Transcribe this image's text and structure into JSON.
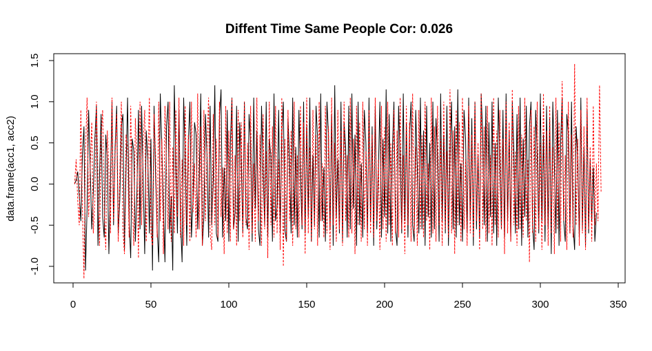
{
  "chart_data": {
    "type": "line",
    "title": "Diffent Time Same People Cor: 0.026",
    "xlabel": "",
    "ylabel": "data.frame(acc1, acc2)",
    "xlim": [
      0,
      340
    ],
    "ylim": [
      -1.15,
      1.46
    ],
    "x_ticks": [
      0,
      50,
      100,
      150,
      200,
      250,
      300,
      350
    ],
    "y_ticks": [
      -1.0,
      -0.5,
      0.0,
      0.5,
      1.0,
      1.5
    ],
    "x_tick_labels": [
      "0",
      "50",
      "100",
      "150",
      "200",
      "250",
      "300",
      "350"
    ],
    "y_tick_labels": [
      "-1.0",
      "-0.5",
      "0.0",
      "0.5",
      "1.0",
      "1.5"
    ],
    "grid": false,
    "colors": {
      "series_1": "#000000",
      "series_2": "#ff0000"
    },
    "series": [
      {
        "line_style": "solid",
        "color": "#000000",
        "x_start": 1,
        "x_step": 1,
        "values": [
          0.0,
          0.05,
          0.15,
          -0.15,
          -0.45,
          0.35,
          0.7,
          -1.05,
          -0.3,
          0.9,
          0.2,
          -0.55,
          -0.1,
          0.55,
          0.95,
          -0.75,
          0.1,
          0.85,
          -0.4,
          -0.65,
          0.6,
          0.3,
          -0.85,
          0.0,
          1.0,
          -0.5,
          0.45,
          0.95,
          -0.6,
          -0.2,
          0.7,
          0.85,
          -0.8,
          0.15,
          1.05,
          -0.45,
          -0.9,
          0.55,
          0.4,
          -0.7,
          -0.1,
          0.9,
          -0.55,
          0.95,
          0.05,
          -0.85,
          0.65,
          0.3,
          -0.6,
          0.55,
          -1.05,
          0.95,
          0.1,
          -0.55,
          -0.95,
          1.1,
          0.45,
          -0.3,
          -0.95,
          0.7,
          1.0,
          -0.6,
          -0.15,
          -1.05,
          1.2,
          0.2,
          -0.6,
          0.9,
          -0.45,
          -0.95,
          1.05,
          0.3,
          -0.75,
          0.5,
          1.0,
          -0.65,
          -0.2,
          0.75,
          0.6,
          -0.55,
          0.1,
          1.1,
          -0.75,
          -0.4,
          0.85,
          0.35,
          -0.65,
          0.95,
          -0.5,
          0.05,
          1.2,
          -0.6,
          -0.7,
          0.8,
          1.15,
          -0.65,
          0.2,
          -0.45,
          0.9,
          -0.7,
          0.5,
          1.05,
          -0.55,
          -0.35,
          0.95,
          -0.7,
          0.75,
          0.25,
          -0.6,
          1.0,
          -0.4,
          -0.55,
          0.85,
          0.5,
          -0.7,
          1.05,
          -0.3,
          0.65,
          -0.55,
          -0.75,
          0.95,
          0.15,
          -0.5,
          1.0,
          -0.65,
          0.55,
          0.35,
          -0.7,
          1.1,
          -0.45,
          -0.25,
          0.9,
          -0.6,
          0.6,
          1.0,
          -0.55,
          -0.7,
          0.8,
          0.3,
          -0.6,
          1.05,
          -0.5,
          0.45,
          -0.65,
          0.9,
          0.1,
          -0.55,
          1.0,
          -0.6,
          0.7,
          -0.4,
          1.05,
          -0.7,
          0.35,
          -0.5,
          0.95,
          0.55,
          -0.65,
          1.1,
          -0.45,
          0.2,
          -0.7,
          1.0,
          0.6,
          -0.55,
          0.85,
          -0.75,
          1.2,
          -0.4,
          0.3,
          -0.6,
          1.0,
          -0.7,
          0.75,
          0.45,
          -0.65,
          0.95,
          -0.55,
          1.1,
          -0.3,
          0.6,
          -0.75,
          1.0,
          -0.5,
          0.25,
          -0.65,
          0.9,
          0.5,
          -0.6,
          1.05,
          -0.45,
          0.7,
          -0.75,
          0.95,
          -0.55,
          0.15,
          1.0,
          -0.65,
          0.55,
          -0.4,
          1.15,
          -0.6,
          0.85,
          -0.7,
          0.4,
          1.0,
          -0.55,
          -0.75,
          0.95,
          0.3,
          -0.6,
          1.1,
          -0.45,
          0.75,
          -0.65,
          0.6,
          1.0,
          -0.5,
          -0.7,
          0.9,
          0.2,
          -0.6,
          1.05,
          -0.55,
          0.65,
          -0.75,
          0.95,
          -0.4,
          0.5,
          -0.65,
          1.0,
          -0.55,
          0.8,
          0.35,
          -0.7,
          1.1,
          -0.45,
          0.6,
          -0.6,
          0.95,
          -0.75,
          0.4,
          1.0,
          -0.55,
          0.7,
          -0.65,
          1.15,
          -0.5,
          0.25,
          -0.7,
          0.9,
          0.55,
          -0.6,
          1.05,
          -0.45,
          0.8,
          -0.75,
          1.0,
          -0.55,
          0.35,
          -0.65,
          1.1,
          0.6,
          -0.5,
          0.95,
          -0.7,
          0.75,
          -0.4,
          1.0,
          -0.6,
          0.5,
          -0.75,
          1.05,
          0.3,
          -0.55,
          0.9,
          -0.65,
          1.1,
          -0.45,
          0.65,
          -0.7,
          1.0,
          0.4,
          -0.6,
          0.85,
          -0.55,
          1.05,
          -0.75,
          0.55,
          -0.4,
          0.95,
          -0.65,
          0.7,
          1.0,
          -0.5,
          -0.8,
          0.9,
          0.35,
          -0.6,
          1.1,
          -0.45,
          0.6,
          -0.7,
          0.95,
          -0.55,
          0.8,
          -0.85,
          1.0,
          0.25,
          -0.6,
          0.9,
          -0.75,
          0.5,
          1.05,
          -0.45,
          -0.7,
          0.85,
          0.6,
          -0.6,
          1.0,
          -0.5,
          -0.8,
          0.7,
          0.3,
          -0.65,
          1.05,
          -0.55,
          0.45,
          -0.75,
          0.9,
          -0.6,
          0.3,
          -0.45,
          0.2,
          -0.7,
          -0.35
        ]
      },
      {
        "line_style": "dashed",
        "color": "#ff0000",
        "x_start": 1,
        "x_step": 1,
        "values": [
          0.0,
          0.3,
          -0.2,
          -0.5,
          0.9,
          -0.3,
          -1.15,
          0.4,
          1.05,
          -0.4,
          0.2,
          0.75,
          -0.6,
          -0.2,
          1.0,
          0.1,
          -0.75,
          0.55,
          0.9,
          -0.3,
          -0.8,
          0.65,
          0.2,
          -0.6,
          1.05,
          -0.45,
          0.35,
          0.85,
          -0.7,
          0.1,
          1.0,
          -0.55,
          -0.85,
          0.6,
          0.45,
          -0.65,
          0.95,
          -0.2,
          -0.75,
          0.8,
          0.3,
          -0.9,
          1.0,
          -0.5,
          0.5,
          0.9,
          -0.7,
          0.15,
          1.05,
          -0.6,
          -0.75,
          0.85,
          0.35,
          -0.65,
          1.0,
          -0.45,
          0.55,
          -0.85,
          0.95,
          0.2,
          -0.55,
          1.0,
          -0.7,
          0.45,
          -0.6,
          0.9,
          -0.4,
          1.05,
          -0.65,
          0.3,
          -0.75,
          0.95,
          -0.5,
          0.6,
          -0.7,
          1.0,
          -0.35,
          0.25,
          -0.65,
          1.1,
          -0.55,
          0.7,
          -0.75,
          0.9,
          -0.45,
          0.4,
          1.05,
          -0.6,
          -0.8,
          0.85,
          -0.5,
          0.55,
          -0.65,
          1.0,
          -0.4,
          0.2,
          -0.85,
          0.95,
          -0.6,
          0.65,
          -0.7,
          1.05,
          -0.55,
          0.35,
          -0.75,
          0.9,
          -0.45,
          0.75,
          -0.65,
          1.0,
          -0.5,
          0.5,
          -0.8,
          0.95,
          -0.6,
          0.25,
          -0.7,
          1.05,
          -0.45,
          0.6,
          -0.75,
          0.85,
          -0.55,
          0.4,
          -0.9,
          1.0,
          -0.5,
          0.7,
          -0.65,
          0.95,
          -0.6,
          0.3,
          -0.8,
          1.05,
          -1.0,
          0.55,
          -0.7,
          0.9,
          -0.45,
          0.65,
          -0.75,
          1.0,
          -0.55,
          0.35,
          -0.65,
          0.95,
          -0.5,
          0.75,
          -0.85,
          1.05,
          -0.6,
          0.45,
          -0.7,
          0.9,
          -0.55,
          0.6,
          -0.75,
          1.0,
          -0.45,
          0.25,
          -0.65,
          0.95,
          -0.6,
          0.7,
          -0.8,
          1.05,
          -0.5,
          0.5,
          -0.7,
          0.9,
          -0.55,
          0.65,
          -0.75,
          1.0,
          -0.45,
          0.35,
          -0.65,
          1.05,
          -0.6,
          0.55,
          -0.85,
          0.95,
          -0.5,
          0.75,
          -0.7,
          1.0,
          -0.55,
          0.4,
          -0.75,
          0.9,
          -0.6,
          0.6,
          -0.65,
          1.05,
          -0.45,
          0.3,
          -0.8,
          0.95,
          -0.55,
          0.7,
          -0.7,
          1.0,
          -0.5,
          0.5,
          -0.75,
          0.9,
          -0.6,
          0.65,
          -0.65,
          1.05,
          -0.55,
          0.35,
          -0.85,
          0.95,
          -0.5,
          0.75,
          -0.7,
          1.1,
          -0.6,
          0.45,
          -0.75,
          0.9,
          -0.55,
          0.6,
          -0.65,
          1.0,
          -0.45,
          0.25,
          -0.8,
          1.05,
          -0.6,
          0.7,
          -0.7,
          0.95,
          -0.5,
          0.55,
          -0.75,
          1.0,
          -0.55,
          0.4,
          -0.65,
          1.15,
          -0.6,
          0.65,
          -0.85,
          0.9,
          -0.5,
          0.75,
          -0.7,
          1.05,
          -0.55,
          0.3,
          -0.75,
          0.95,
          -0.6,
          0.6,
          -0.65,
          1.0,
          -0.45,
          0.5,
          -0.8,
          1.1,
          -0.55,
          0.7,
          -0.7,
          0.95,
          -0.6,
          0.35,
          -0.75,
          1.05,
          -0.5,
          0.65,
          -0.65,
          0.9,
          -0.55,
          0.55,
          -0.85,
          1.0,
          -0.6,
          0.75,
          -0.7,
          1.15,
          -0.5,
          0.4,
          -0.75,
          0.95,
          -0.55,
          0.6,
          -0.65,
          1.05,
          -0.45,
          0.3,
          -0.95,
          0.9,
          -0.6,
          0.7,
          -0.7,
          1.0,
          -0.55,
          0.5,
          -0.8,
          1.1,
          -0.5,
          0.65,
          -0.75,
          0.95,
          -0.6,
          0.45,
          -0.85,
          1.05,
          -0.55,
          0.75,
          -0.7,
          1.25,
          -0.45,
          0.35,
          -0.8,
          1.0,
          -0.6,
          0.6,
          -0.65,
          1.46,
          -0.5,
          0.55,
          -0.75,
          0.9,
          -0.6,
          0.7,
          -0.8,
          1.05,
          -0.55,
          0.45,
          -0.7,
          0.95,
          -0.5,
          0.25,
          -0.45,
          1.2,
          -0.1
        ]
      }
    ]
  }
}
